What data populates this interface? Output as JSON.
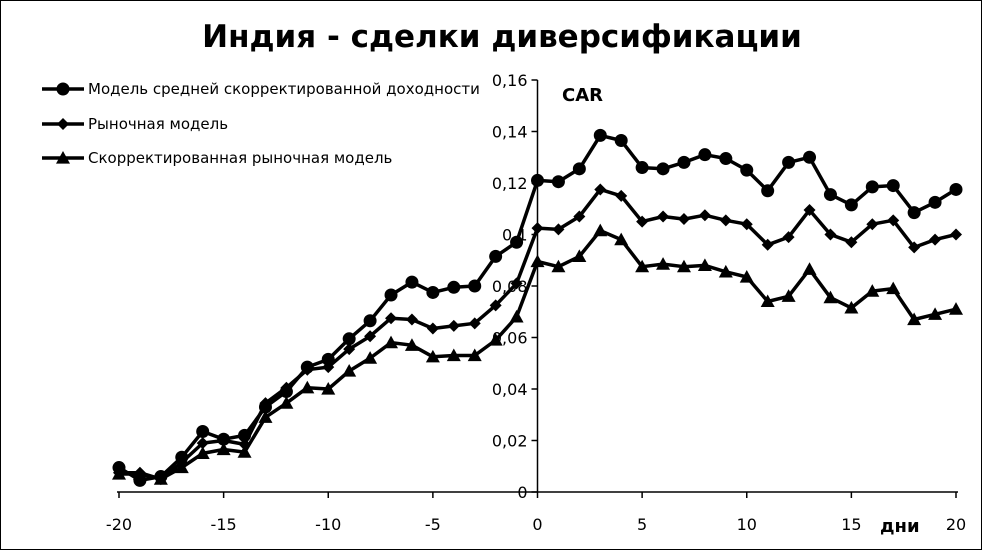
{
  "chart_data": {
    "type": "line",
    "title": "Индия - сделки диверсификации",
    "ylabel": "CAR",
    "xlabel": "дни",
    "xlim": [
      -20,
      20
    ],
    "ylim": [
      0,
      0.16
    ],
    "x_ticks": [
      -20,
      -15,
      -10,
      -5,
      0,
      5,
      10,
      15,
      20
    ],
    "x_tick_labels": [
      "-20",
      "-15",
      "-10",
      "-5",
      "0",
      "5",
      "10",
      "15",
      "20"
    ],
    "y_ticks": [
      0,
      0.02,
      0.04,
      0.06,
      0.08,
      0.1,
      0.12,
      0.14,
      0.16
    ],
    "y_tick_labels": [
      "0",
      "0,02",
      "0,04",
      "0,06",
      "0,08",
      "0,1",
      "0,12",
      "0,14",
      "0,16"
    ],
    "grid": false,
    "legend_position": "top-left",
    "x": [
      -20,
      -19,
      -18,
      -17,
      -16,
      -15,
      -14,
      -13,
      -12,
      -11,
      -10,
      -9,
      -8,
      -7,
      -6,
      -5,
      -4,
      -3,
      -2,
      -1,
      0,
      1,
      2,
      3,
      4,
      5,
      6,
      7,
      8,
      9,
      10,
      11,
      12,
      13,
      14,
      15,
      16,
      17,
      18,
      19,
      20
    ],
    "series": [
      {
        "name": "Модель средней скорректированной доходности",
        "marker": "circle",
        "color": "#000000",
        "values": [
          0.0095,
          0.0045,
          0.006,
          0.0135,
          0.0235,
          0.0205,
          0.022,
          0.033,
          0.039,
          0.0485,
          0.0515,
          0.0595,
          0.0665,
          0.0765,
          0.0815,
          0.0775,
          0.0795,
          0.08,
          0.0915,
          0.097,
          0.121,
          0.1205,
          0.1255,
          0.1385,
          0.1365,
          0.126,
          0.1255,
          0.128,
          0.131,
          0.1295,
          0.125,
          0.117,
          0.128,
          0.13,
          0.1155,
          0.1115,
          0.1185,
          0.119,
          0.1085,
          0.1125,
          0.1175
        ]
      },
      {
        "name": "Рыночная модель",
        "marker": "diamond",
        "color": "#000000",
        "values": [
          0.0075,
          0.0075,
          0.005,
          0.0115,
          0.019,
          0.02,
          0.0185,
          0.0345,
          0.0405,
          0.0475,
          0.0485,
          0.0555,
          0.0605,
          0.0675,
          0.067,
          0.0635,
          0.0645,
          0.0655,
          0.0725,
          0.081,
          0.1025,
          0.102,
          0.107,
          0.1175,
          0.115,
          0.105,
          0.107,
          0.106,
          0.1075,
          0.1055,
          0.104,
          0.096,
          0.099,
          0.1095,
          0.1,
          0.097,
          0.104,
          0.1055,
          0.095,
          0.098,
          0.1
        ]
      },
      {
        "name": "Скорректированная рыночная модель",
        "marker": "triangle",
        "color": "#000000",
        "values": [
          0.007,
          0.007,
          0.005,
          0.0095,
          0.015,
          0.0165,
          0.0155,
          0.029,
          0.0345,
          0.0405,
          0.04,
          0.047,
          0.052,
          0.058,
          0.057,
          0.0525,
          0.053,
          0.053,
          0.059,
          0.068,
          0.0895,
          0.0875,
          0.0915,
          0.1015,
          0.098,
          0.0875,
          0.0885,
          0.0875,
          0.088,
          0.0855,
          0.0835,
          0.074,
          0.076,
          0.0865,
          0.0755,
          0.0715,
          0.078,
          0.079,
          0.067,
          0.069,
          0.071
        ]
      }
    ]
  }
}
